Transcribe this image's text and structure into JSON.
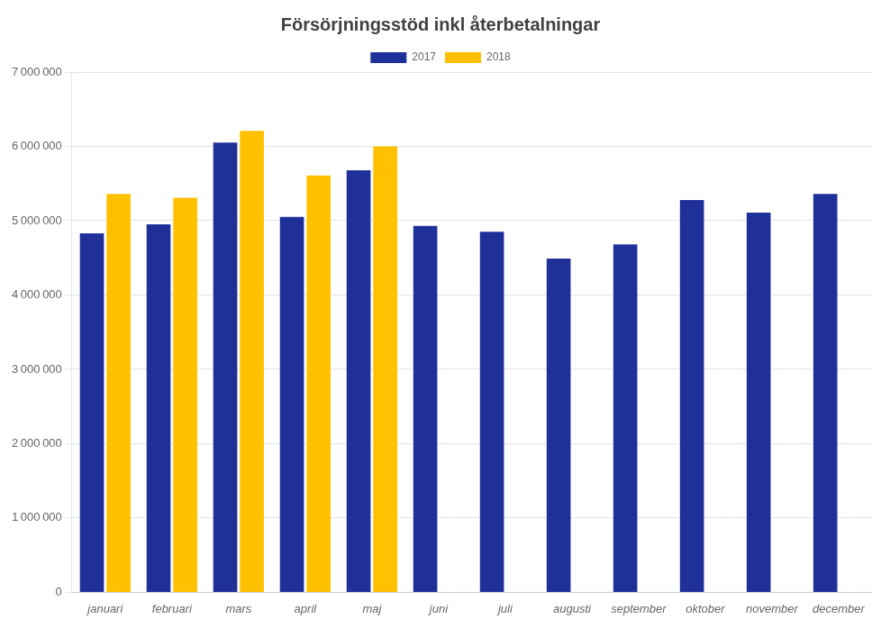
{
  "chart_data": {
    "type": "bar",
    "title": "Försörjningsstöd inkl återbetalningar",
    "categories": [
      "januari",
      "februari",
      "mars",
      "april",
      "maj",
      "juni",
      "juli",
      "augusti",
      "september",
      "oktober",
      "november",
      "december"
    ],
    "series": [
      {
        "name": "2017",
        "color": "#1F3099",
        "values": [
          4830000,
          4950000,
          6050000,
          5050000,
          5680000,
          4930000,
          4850000,
          4490000,
          4680000,
          5280000,
          5110000,
          5360000
        ]
      },
      {
        "name": "2018",
        "color": "#FFC000",
        "values": [
          5360000,
          5310000,
          6210000,
          5610000,
          6000000,
          null,
          null,
          null,
          null,
          null,
          null,
          null
        ]
      }
    ],
    "ylim": [
      0,
      7000000
    ],
    "yticks": [
      0,
      {
        "value": 1000000,
        "label": "1 000 000"
      },
      {
        "value": 2000000,
        "label": "2 000 000"
      },
      {
        "value": 3000000,
        "label": "3 000 000"
      },
      {
        "value": 4000000,
        "label": "4 000 000"
      },
      {
        "value": 5000000,
        "label": "5 000 000"
      },
      {
        "value": 6000000,
        "label": "6 000 000"
      },
      {
        "value": 7000000,
        "label": "7 000 000"
      }
    ],
    "grid": true,
    "legend": "top"
  }
}
